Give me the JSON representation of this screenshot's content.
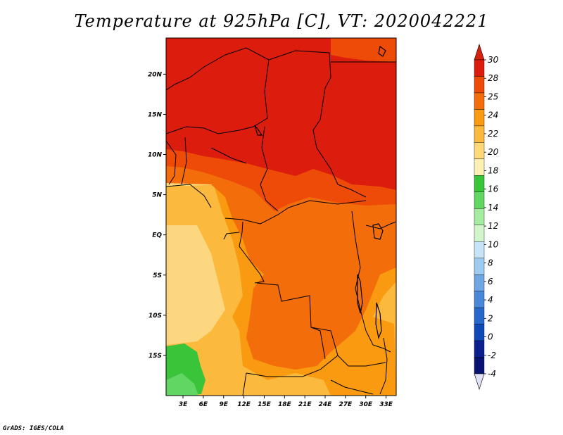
{
  "title": "Temperature at 925hPa [C], VT: 2020042221",
  "credit": "GrADS: IGES/COLA",
  "map": {
    "lat_ticks": [
      {
        "label": "20N",
        "lat": 20
      },
      {
        "label": "15N",
        "lat": 15
      },
      {
        "label": "10N",
        "lat": 10
      },
      {
        "label": "5N",
        "lat": 5
      },
      {
        "label": "EQ",
        "lat": 0
      },
      {
        "label": "5S",
        "lat": -5
      },
      {
        "label": "10S",
        "lat": -10
      },
      {
        "label": "15S",
        "lat": -15
      }
    ],
    "lon_ticks": [
      {
        "label": "3E",
        "lon": 3
      },
      {
        "label": "6E",
        "lon": 6
      },
      {
        "label": "9E",
        "lon": 9
      },
      {
        "label": "12E",
        "lon": 12
      },
      {
        "label": "15E",
        "lon": 15
      },
      {
        "label": "18E",
        "lon": 18
      },
      {
        "label": "21E",
        "lon": 21
      },
      {
        "label": "24E",
        "lon": 24
      },
      {
        "label": "27E",
        "lon": 27
      },
      {
        "label": "30E",
        "lon": 30
      },
      {
        "label": "33E",
        "lon": 33
      }
    ],
    "lon_range": [
      0.5,
      34.5
    ],
    "lat_range": [
      -20,
      24.5
    ]
  },
  "colorbar": {
    "levels": [
      "30",
      "28",
      "25",
      "24",
      "22",
      "20",
      "18",
      "16",
      "14",
      "12",
      "10",
      "8",
      "6",
      "4",
      "2",
      "0",
      "-2",
      "-4"
    ],
    "colors": [
      "#dc1c0c",
      "#ee4a08",
      "#f46d0b",
      "#f99a10",
      "#fbb93e",
      "#fdd97a",
      "#fdf0b4",
      "#3ac43a",
      "#62d662",
      "#a6eca0",
      "#d2f6cc",
      "#c6e4f6",
      "#9ecbf0",
      "#6fa7e4",
      "#4a87d8",
      "#2668cc",
      "#1048b8",
      "#0a2090",
      "#081474"
    ],
    "top_arrow_color": "#d8220e",
    "bottom_arrow_color": "#e0e0f8"
  }
}
